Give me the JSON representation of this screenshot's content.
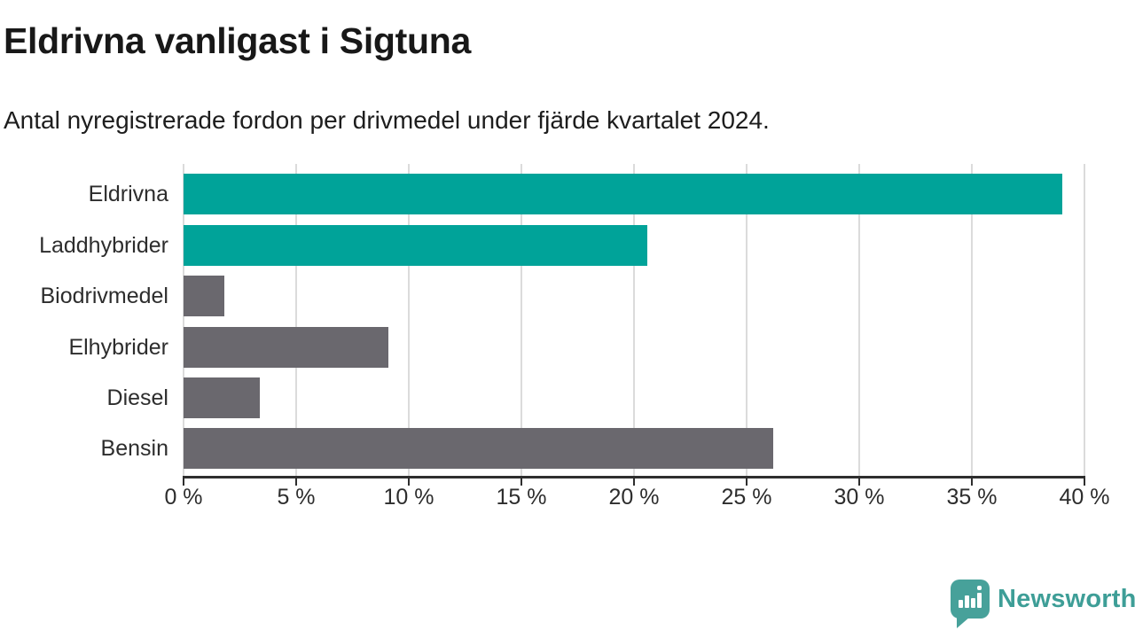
{
  "title": "Eldrivna vanligast i Sigtuna",
  "subtitle": "Antal nyregistrerade fordon per drivmedel under fjärde kvartalet 2024.",
  "chart_data": {
    "type": "bar",
    "orientation": "horizontal",
    "title": "Eldrivna vanligast i Sigtuna",
    "subtitle": "Antal nyregistrerade fordon per drivmedel under fjärde kvartalet 2024.",
    "categories": [
      "Eldrivna",
      "Laddhybrider",
      "Biodrivmedel",
      "Elhybrider",
      "Diesel",
      "Bensin"
    ],
    "values": [
      39.0,
      20.6,
      1.8,
      9.1,
      3.4,
      26.2
    ],
    "unit": "%",
    "xlim": [
      0,
      40
    ],
    "x_ticks": [
      "0 %",
      "5 %",
      "10 %",
      "15 %",
      "20 %",
      "25 %",
      "30 %",
      "35 %",
      "40 %"
    ],
    "grid": true,
    "legend": "none",
    "bar_colors": [
      "#00a399",
      "#00a399",
      "#6a686e",
      "#6a686e",
      "#6a686e",
      "#6a686e"
    ],
    "highlight_color": "#00a399",
    "default_color": "#6a686e",
    "gridline_color": "#dbdbdb",
    "axis_color": "#2e2e2e"
  },
  "branding": {
    "logo_text": "Newsworthy",
    "logo_text_color": "#3e9e97",
    "logo_bubble_color": "#47a19a",
    "logo_icon": "bar-chart-speech-bubble-icon"
  }
}
